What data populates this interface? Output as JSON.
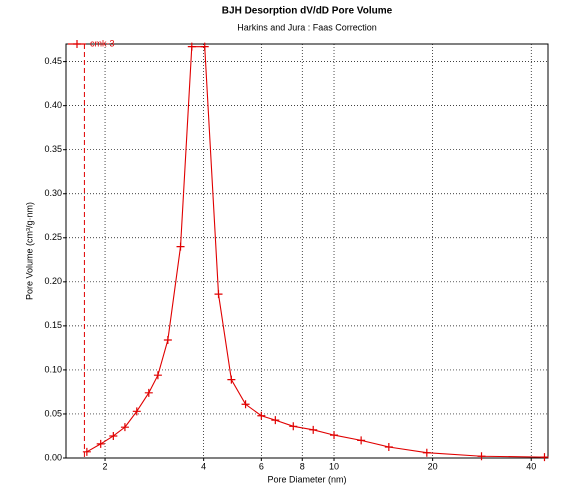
{
  "chart_data": {
    "type": "line",
    "title": "BJH Desorption dV/dD Pore Volume",
    "subtitle": "Harkins and Jura : Faas Correction",
    "x_label": "Pore Diameter (nm)",
    "y_label": "Pore Volume (cm³/g·nm)",
    "x_scale": "log",
    "xlim": [
      1.52,
      45
    ],
    "ylim": [
      0,
      0.47
    ],
    "xticks": [
      2,
      4,
      6,
      8,
      10,
      20,
      40
    ],
    "yticks": [
      {
        "value": 0,
        "label": "0.00"
      },
      {
        "value": 0.05,
        "label": "0.05"
      },
      {
        "value": 0.1,
        "label": "0.10"
      },
      {
        "value": 0.15,
        "label": "0.15"
      },
      {
        "value": 0.2,
        "label": "0.20"
      },
      {
        "value": 0.25,
        "label": "0.25"
      },
      {
        "value": 0.3,
        "label": "0.30"
      },
      {
        "value": 0.35,
        "label": "0.35"
      },
      {
        "value": 0.4,
        "label": "0.40"
      },
      {
        "value": 0.45,
        "label": "0.45"
      }
    ],
    "grid": true,
    "legend": "top-left",
    "reference_x": 1.73,
    "series": [
      {
        "name": "cmk-3",
        "color": "#e00000",
        "x": [
          1.76,
          1.94,
          2.12,
          2.3,
          2.5,
          2.72,
          2.9,
          3.11,
          3.4,
          3.68,
          4.03,
          4.44,
          4.86,
          5.37,
          6.0,
          6.62,
          7.51,
          8.64,
          10.0,
          12.1,
          14.7,
          19.2,
          28.2,
          43.9
        ],
        "values": [
          0.007,
          0.016,
          0.025,
          0.035,
          0.053,
          0.074,
          0.094,
          0.134,
          0.24,
          0.467,
          0.467,
          0.186,
          0.089,
          0.061,
          0.048,
          0.043,
          0.036,
          0.032,
          0.026,
          0.02,
          0.0125,
          0.006,
          0.002,
          0.001
        ]
      }
    ]
  }
}
